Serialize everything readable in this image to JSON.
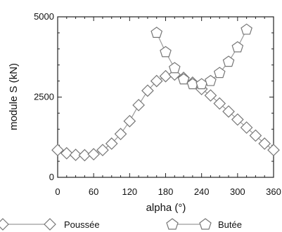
{
  "chart_data": {
    "type": "line",
    "title": "",
    "xlabel": "alpha (°)",
    "ylabel": "module S (kN)",
    "xlim": [
      0,
      360
    ],
    "ylim": [
      0,
      5000
    ],
    "x_ticks": [
      0,
      60,
      120,
      180,
      240,
      300,
      360
    ],
    "x_tick_labels": [
      "0",
      "60",
      "120",
      "180",
      "240",
      "300",
      "360"
    ],
    "y_ticks": [
      0,
      2500,
      5000
    ],
    "y_tick_labels": [
      "0",
      "2500",
      "5000"
    ],
    "grid": false,
    "legend_position": "bottom",
    "series": [
      {
        "name": "Poussée",
        "marker": "diamond",
        "color": "#777777",
        "x": [
          0,
          15,
          30,
          45,
          60,
          75,
          90,
          105,
          120,
          135,
          150,
          165,
          180,
          195,
          210,
          225,
          240,
          255,
          270,
          285,
          300,
          315,
          330,
          345,
          360
        ],
        "y": [
          850,
          750,
          700,
          690,
          720,
          850,
          1050,
          1350,
          1750,
          2250,
          2700,
          3000,
          3150,
          3200,
          3100,
          2950,
          2750,
          2550,
          2300,
          2050,
          1800,
          1550,
          1300,
          1050,
          850
        ]
      },
      {
        "name": "Butée",
        "marker": "pentagon",
        "color": "#777777",
        "x": [
          165,
          180,
          195,
          210,
          225,
          240,
          255,
          270,
          285,
          300,
          315
        ],
        "y": [
          4500,
          3900,
          3400,
          3050,
          2900,
          2900,
          3000,
          3250,
          3600,
          4050,
          4600
        ]
      }
    ]
  }
}
